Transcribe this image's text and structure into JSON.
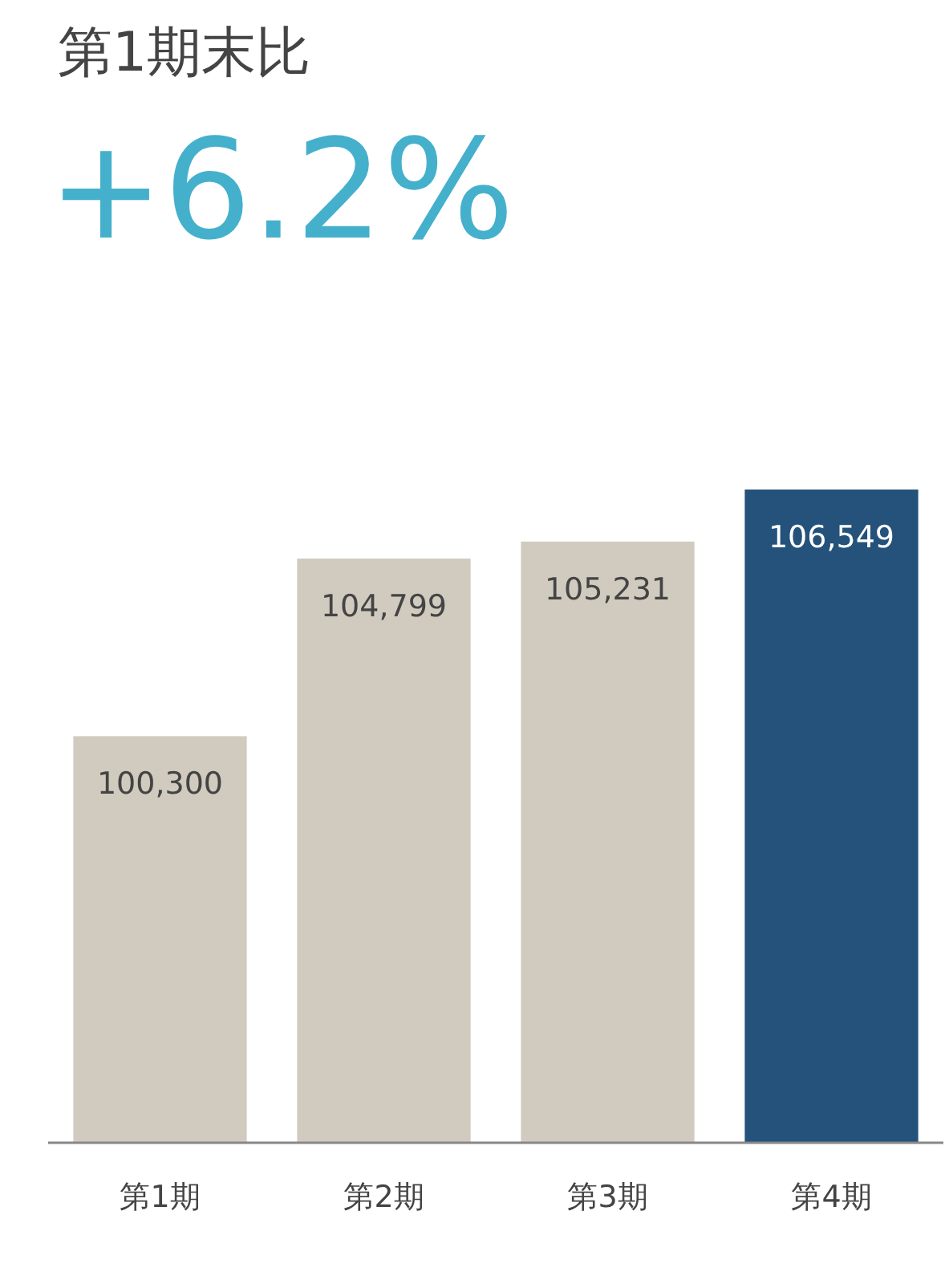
{
  "chart_data": {
    "type": "bar",
    "title": "第1期末比",
    "subtitle": "+6.2%",
    "categories": [
      "第1期",
      "第2期",
      "第3期",
      "第4期"
    ],
    "values": [
      100300,
      104799,
      105231,
      106549
    ],
    "value_labels": [
      "100,300",
      "104,799",
      "105,231",
      "106,549"
    ],
    "colors": [
      "#d1cbbf",
      "#d1cbbf",
      "#d1cbbf",
      "#24527a"
    ],
    "ylim": [
      90000,
      106549
    ],
    "tick_labels": "x"
  }
}
